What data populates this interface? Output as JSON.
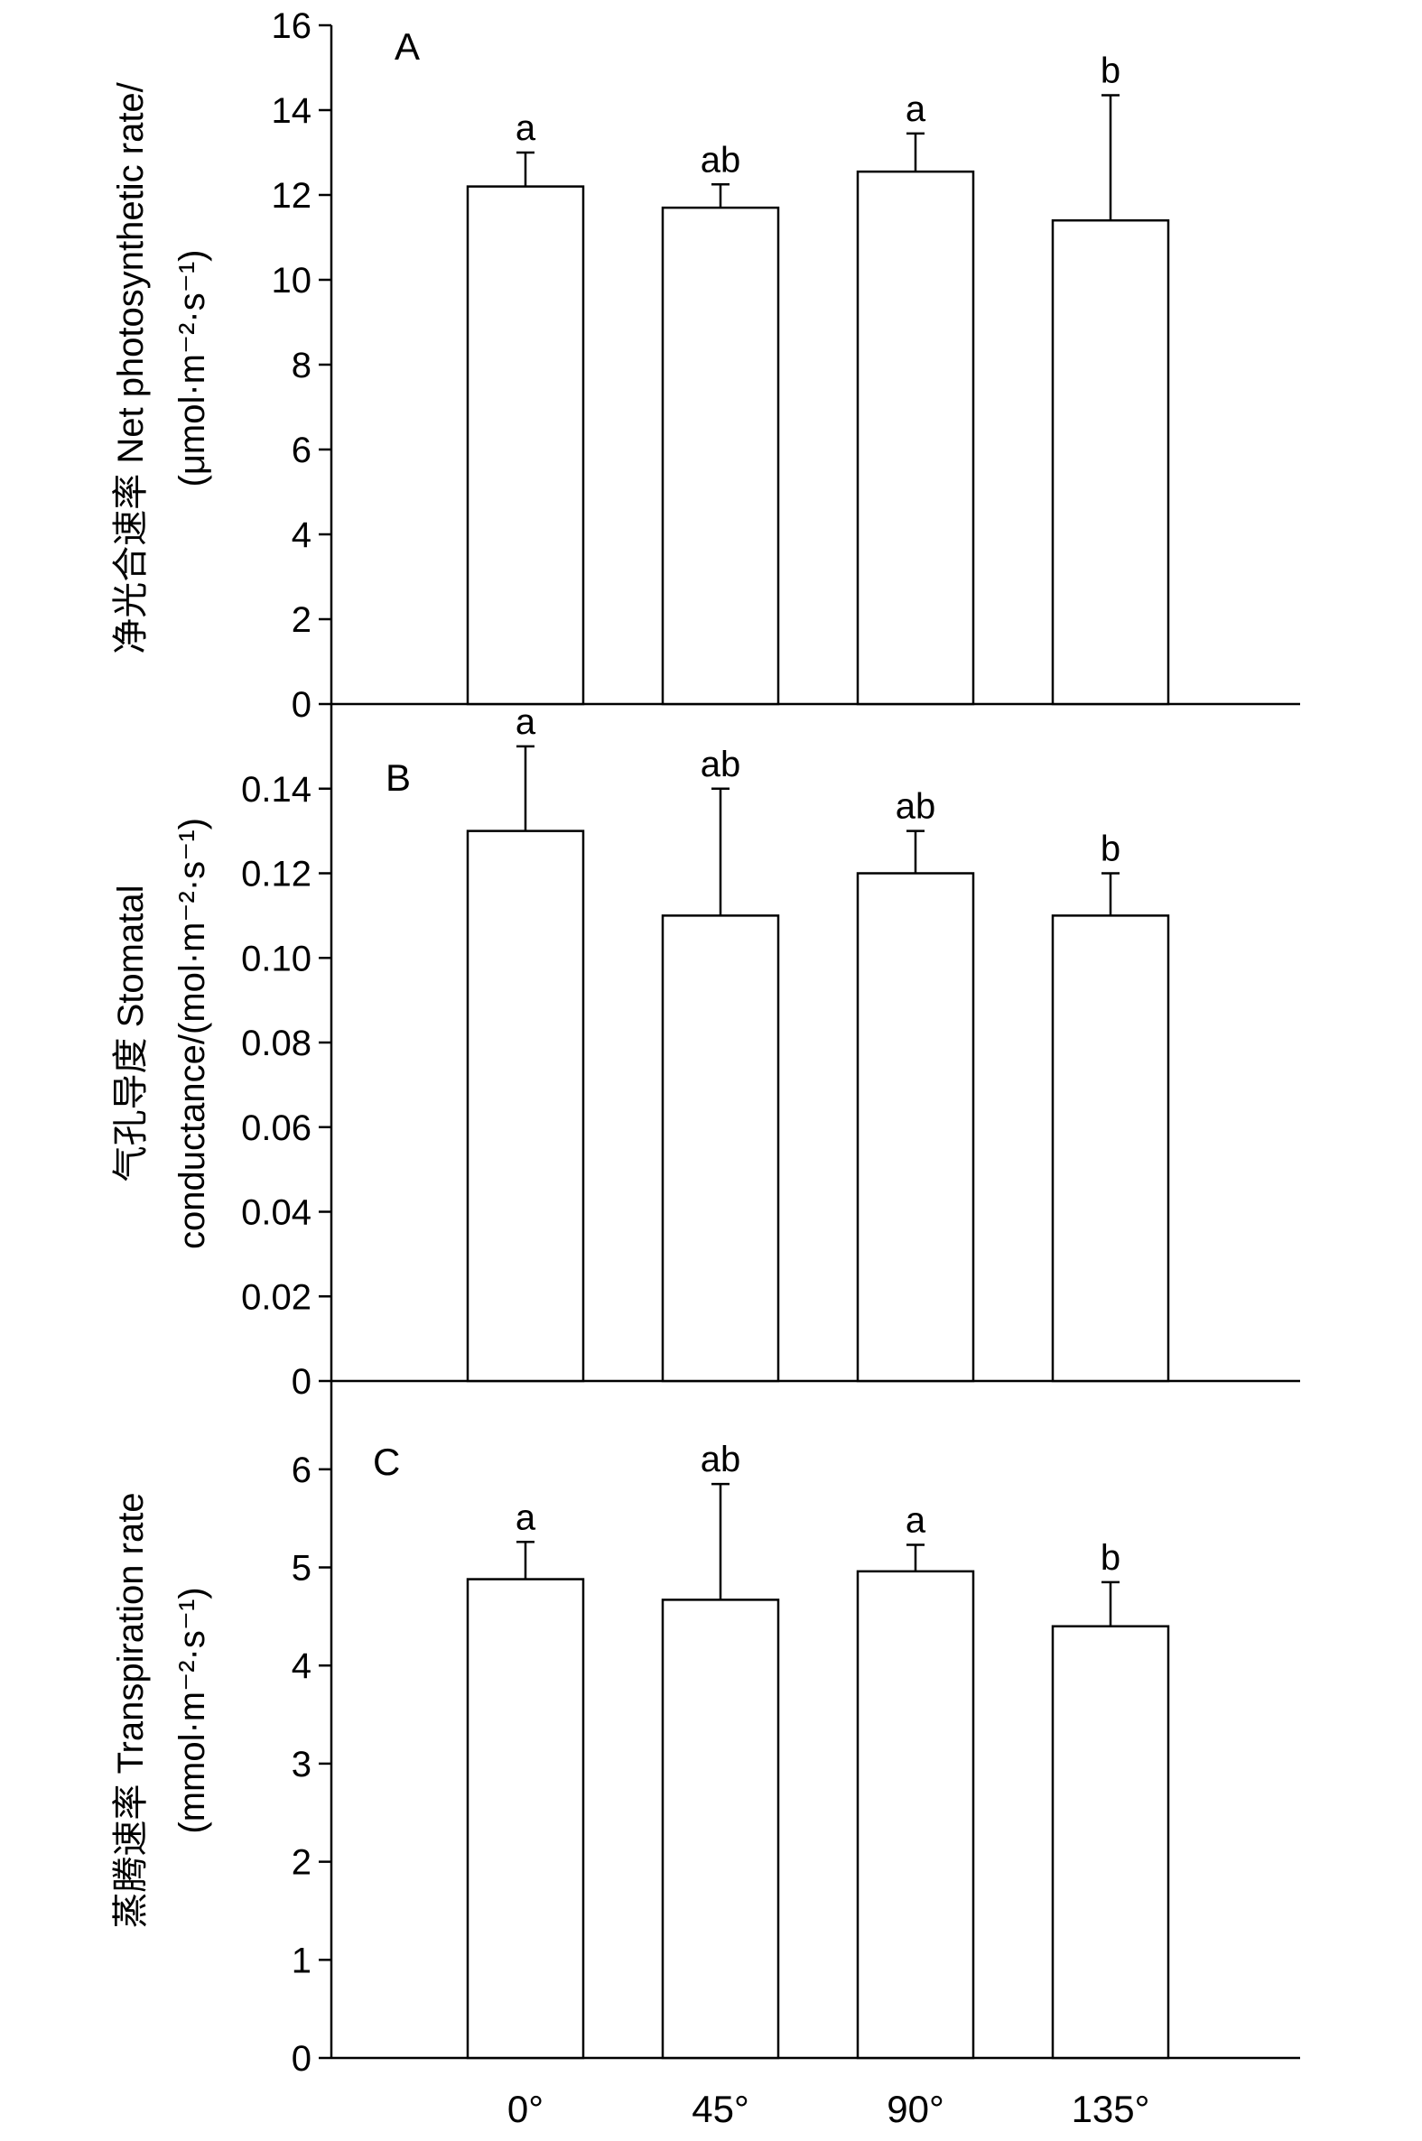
{
  "chart_data": [
    {
      "type": "bar",
      "panel": "A",
      "categories": [
        "0°",
        "45°",
        "90°",
        "135°"
      ],
      "values": [
        12.2,
        11.7,
        12.55,
        11.4
      ],
      "error": [
        0.8,
        0.55,
        0.9,
        2.95
      ],
      "significance": [
        "a",
        "ab",
        "a",
        "b"
      ],
      "ylabel_lines": [
        "净光合速率 Net photosynthetic rate/",
        "(μmol·m⁻²·s⁻¹)"
      ],
      "yticks": [
        "0",
        "2",
        "4",
        "6",
        "8",
        "10",
        "12",
        "14",
        "16"
      ],
      "ylim": [
        0,
        16
      ],
      "grid": false
    },
    {
      "type": "bar",
      "panel": "B",
      "categories": [
        "0°",
        "45°",
        "90°",
        "135°"
      ],
      "values": [
        0.13,
        0.11,
        0.12,
        0.11
      ],
      "error": [
        0.02,
        0.03,
        0.01,
        0.01
      ],
      "significance": [
        "a",
        "ab",
        "ab",
        "b"
      ],
      "ylabel_lines": [
        "气孔导度 Stomatal",
        "conductance/(mol·m⁻²·s⁻¹)"
      ],
      "yticks": [
        "0",
        "0.02",
        "0.04",
        "0.06",
        "0.08",
        "0.10",
        "0.12",
        "0.14"
      ],
      "ylim": [
        0,
        0.16
      ],
      "grid": false
    },
    {
      "type": "bar",
      "panel": "C",
      "categories": [
        "0°",
        "45°",
        "90°",
        "135°"
      ],
      "values": [
        4.88,
        4.67,
        4.96,
        4.4
      ],
      "error": [
        0.38,
        1.18,
        0.27,
        0.45
      ],
      "significance": [
        "a",
        "ab",
        "a",
        "b"
      ],
      "ylabel_lines": [
        "蒸腾速率 Transpiration rate",
        "(mmol·m⁻²·s⁻¹)"
      ],
      "yticks": [
        "0",
        "1",
        "2",
        "3",
        "4",
        "5",
        "6"
      ],
      "ylim": [
        0,
        6.9
      ],
      "grid": false
    }
  ]
}
